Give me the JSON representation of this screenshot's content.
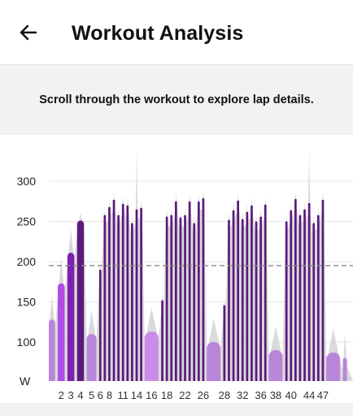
{
  "header": {
    "title": "Workout Analysis",
    "back_icon": "arrow-left-icon"
  },
  "banner": {
    "text": "Scroll through the workout to explore lap details."
  },
  "colors": {
    "lap_dark": "#5b1a7c",
    "lap_mid": "#7d1fb0",
    "lap_bright": "#b04de8",
    "lap_light": "#b886d8",
    "lap_pale": "#c98ce8",
    "power_area": "#d6d6d6",
    "threshold_line": "#888888"
  },
  "chart_data": {
    "type": "bar",
    "y_unit_label": "W",
    "ylim": [
      50,
      350
    ],
    "yticks": [
      100,
      150,
      200,
      250,
      300
    ],
    "threshold": 195,
    "x_tick_labels": [
      "2",
      "3",
      "4",
      "5",
      "6",
      "8",
      "11",
      "14",
      "16",
      "18",
      "22",
      "26",
      "28",
      "32",
      "36",
      "38",
      "40",
      "44",
      "47"
    ],
    "laps": [
      {
        "lap": 1,
        "power": 128,
        "tone": "light"
      },
      {
        "lap": 2,
        "power": 173,
        "tone": "bright"
      },
      {
        "lap": 3,
        "power": 211,
        "tone": "mid"
      },
      {
        "lap": 4,
        "power": 251,
        "tone": "dark"
      },
      {
        "lap": 5,
        "power": 110,
        "tone": "light"
      },
      {
        "lap": 6,
        "power": 190,
        "tone": "dark"
      },
      {
        "lap": 7,
        "power": 258,
        "tone": "dark"
      },
      {
        "lap": 8,
        "power": 268,
        "tone": "dark"
      },
      {
        "lap": 9,
        "power": 277,
        "tone": "dark"
      },
      {
        "lap": 10,
        "power": 258,
        "tone": "dark"
      },
      {
        "lap": 11,
        "power": 272,
        "tone": "dark"
      },
      {
        "lap": 12,
        "power": 270,
        "tone": "dark"
      },
      {
        "lap": 13,
        "power": 248,
        "tone": "dark"
      },
      {
        "lap": 14,
        "power": 265,
        "tone": "dark"
      },
      {
        "lap": 15,
        "power": 267,
        "tone": "dark"
      },
      {
        "lap": 16,
        "power": 113,
        "tone": "pale"
      },
      {
        "lap": 17,
        "power": 152,
        "tone": "dark"
      },
      {
        "lap": 18,
        "power": 256,
        "tone": "dark"
      },
      {
        "lap": 19,
        "power": 258,
        "tone": "dark"
      },
      {
        "lap": 20,
        "power": 275,
        "tone": "dark"
      },
      {
        "lap": 21,
        "power": 255,
        "tone": "dark"
      },
      {
        "lap": 22,
        "power": 258,
        "tone": "dark"
      },
      {
        "lap": 23,
        "power": 275,
        "tone": "dark"
      },
      {
        "lap": 24,
        "power": 248,
        "tone": "dark"
      },
      {
        "lap": 25,
        "power": 275,
        "tone": "dark"
      },
      {
        "lap": 26,
        "power": 279,
        "tone": "dark"
      },
      {
        "lap": 27,
        "power": 100,
        "tone": "light"
      },
      {
        "lap": 28,
        "power": 146,
        "tone": "dark"
      },
      {
        "lap": 29,
        "power": 252,
        "tone": "dark"
      },
      {
        "lap": 30,
        "power": 264,
        "tone": "dark"
      },
      {
        "lap": 31,
        "power": 276,
        "tone": "dark"
      },
      {
        "lap": 32,
        "power": 253,
        "tone": "dark"
      },
      {
        "lap": 33,
        "power": 262,
        "tone": "dark"
      },
      {
        "lap": 34,
        "power": 270,
        "tone": "dark"
      },
      {
        "lap": 35,
        "power": 250,
        "tone": "dark"
      },
      {
        "lap": 36,
        "power": 256,
        "tone": "dark"
      },
      {
        "lap": 37,
        "power": 271,
        "tone": "dark"
      },
      {
        "lap": 38,
        "power": 90,
        "tone": "light"
      },
      {
        "lap": 39,
        "power": 250,
        "tone": "dark"
      },
      {
        "lap": 40,
        "power": 264,
        "tone": "dark"
      },
      {
        "lap": 41,
        "power": 278,
        "tone": "dark"
      },
      {
        "lap": 42,
        "power": 258,
        "tone": "dark"
      },
      {
        "lap": 43,
        "power": 265,
        "tone": "dark"
      },
      {
        "lap": 44,
        "power": 273,
        "tone": "dark"
      },
      {
        "lap": 45,
        "power": 248,
        "tone": "dark"
      },
      {
        "lap": 46,
        "power": 258,
        "tone": "dark"
      },
      {
        "lap": 47,
        "power": 277,
        "tone": "dark"
      },
      {
        "lap": 48,
        "power": 87,
        "tone": "light"
      },
      {
        "lap": 49,
        "power": 80,
        "tone": "light"
      }
    ]
  }
}
